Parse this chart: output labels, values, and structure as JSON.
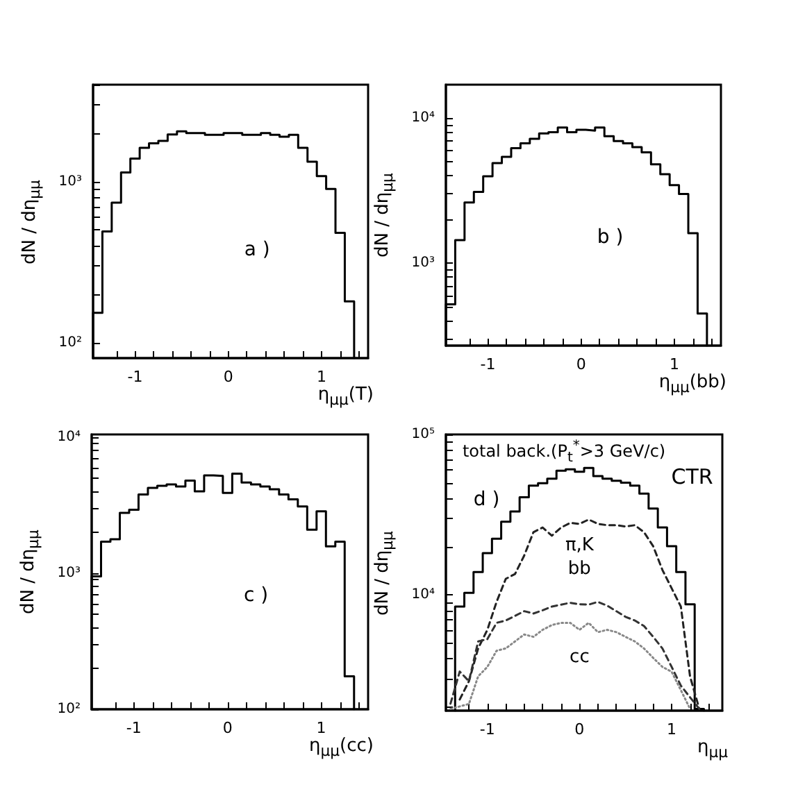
{
  "chart_data": [
    {
      "type": "histogram",
      "xlabel": "η$_{μμ}$(T)",
      "ylabel": "dN / dη$_{μμ}$",
      "annotations": [
        "a )"
      ],
      "color": "#000000",
      "log": true,
      "grid": false,
      "bins": [
        -1.45,
        -1.35,
        -1.25,
        -1.15,
        -1.05,
        -0.95,
        -0.85,
        -0.75,
        -0.65,
        -0.55,
        -0.45,
        -0.35,
        -0.25,
        -0.15,
        -0.05,
        0.05,
        0.15,
        0.25,
        0.35,
        0.45,
        0.55,
        0.65,
        0.75,
        0.85,
        0.95,
        1.05,
        1.15,
        1.25,
        1.35
      ],
      "values": [
        153,
        490,
        740,
        1140,
        1390,
        1620,
        1730,
        1790,
        1960,
        2050,
        2000,
        2000,
        1950,
        1950,
        2000,
        2000,
        1950,
        1950,
        2000,
        1950,
        1900,
        1950,
        1620,
        1330,
        1080,
        900,
        480,
        180
      ],
      "xlim": [
        -1.45,
        1.5
      ],
      "ylim": [
        80,
        4000
      ],
      "xticks": [
        {
          "value": -1.2,
          "label": null
        },
        {
          "value": -1,
          "label": "-1"
        },
        {
          "value": -0.8,
          "label": null
        },
        {
          "value": -0.6,
          "label": null
        },
        {
          "value": -0.4,
          "label": null
        },
        {
          "value": -0.2,
          "label": null
        },
        {
          "value": 0,
          "label": "0"
        },
        {
          "value": 0.2,
          "label": null
        },
        {
          "value": 0.4,
          "label": null
        },
        {
          "value": 0.6,
          "label": null
        },
        {
          "value": 0.8,
          "label": null
        },
        {
          "value": 1,
          "label": "1"
        },
        {
          "value": 1.2,
          "label": null
        },
        {
          "value": 1.4,
          "label": null
        }
      ],
      "yticks": [
        {
          "value": 100,
          "label": "10²"
        },
        {
          "value": 200,
          "label": null
        },
        {
          "value": 300,
          "label": null
        },
        {
          "value": 400,
          "label": null
        },
        {
          "value": 500,
          "label": null
        },
        {
          "value": 600,
          "label": null
        },
        {
          "value": 700,
          "label": null
        },
        {
          "value": 800,
          "label": null
        },
        {
          "value": 900,
          "label": null
        },
        {
          "value": 1000,
          "label": "10³"
        },
        {
          "value": 2000,
          "label": null
        },
        {
          "value": 3000,
          "label": null
        },
        {
          "value": 4000,
          "label": null
        }
      ]
    },
    {
      "type": "histogram",
      "xlabel": "η$_{μμ}$(bb)",
      "ylabel": "dN / dη$_{μμ}$",
      "annotations": [
        "b )"
      ],
      "color": "#000000",
      "log": true,
      "grid": false,
      "bins": [
        -1.45,
        -1.35,
        -1.25,
        -1.15,
        -1.05,
        -0.95,
        -0.85,
        -0.75,
        -0.65,
        -0.55,
        -0.45,
        -0.35,
        -0.25,
        -0.15,
        -0.05,
        0.05,
        0.15,
        0.25,
        0.35,
        0.45,
        0.55,
        0.65,
        0.75,
        0.85,
        0.95,
        1.05,
        1.15,
        1.25,
        1.35
      ],
      "values": [
        520,
        1440,
        2620,
        3100,
        3970,
        4900,
        5400,
        6200,
        6700,
        7200,
        7850,
        8000,
        8600,
        8000,
        8300,
        8200,
        8600,
        7500,
        6950,
        6700,
        6300,
        5800,
        4800,
        4100,
        3450,
        3000,
        1610,
        450
      ],
      "xlim": [
        -1.45,
        1.5
      ],
      "ylim": [
        270,
        17000
      ],
      "xticks": [
        {
          "value": -1.2,
          "label": null
        },
        {
          "value": -1,
          "label": "-1"
        },
        {
          "value": -0.8,
          "label": null
        },
        {
          "value": -0.6,
          "label": null
        },
        {
          "value": -0.4,
          "label": null
        },
        {
          "value": -0.2,
          "label": null
        },
        {
          "value": 0,
          "label": "0"
        },
        {
          "value": 0.2,
          "label": null
        },
        {
          "value": 0.4,
          "label": null
        },
        {
          "value": 0.6,
          "label": null
        },
        {
          "value": 0.8,
          "label": null
        },
        {
          "value": 1,
          "label": "1"
        },
        {
          "value": 1.2,
          "label": null
        },
        {
          "value": 1.4,
          "label": null
        }
      ],
      "yticks": [
        {
          "value": 300,
          "label": null
        },
        {
          "value": 400,
          "label": null
        },
        {
          "value": 500,
          "label": null
        },
        {
          "value": 600,
          "label": null
        },
        {
          "value": 700,
          "label": null
        },
        {
          "value": 800,
          "label": null
        },
        {
          "value": 900,
          "label": null
        },
        {
          "value": 1000,
          "label": "10³"
        },
        {
          "value": 2000,
          "label": null
        },
        {
          "value": 3000,
          "label": null
        },
        {
          "value": 4000,
          "label": null
        },
        {
          "value": 5000,
          "label": null
        },
        {
          "value": 6000,
          "label": null
        },
        {
          "value": 7000,
          "label": null
        },
        {
          "value": 8000,
          "label": null
        },
        {
          "value": 9000,
          "label": null
        },
        {
          "value": 10000,
          "label": "10⁴"
        }
      ]
    },
    {
      "type": "histogram",
      "xlabel": "η$_{μμ}$(cc)",
      "ylabel": "dN / dη$_{μμ}$",
      "annotations": [
        "c )"
      ],
      "color": "#000000",
      "log": true,
      "grid": false,
      "bins": [
        -1.45,
        -1.35,
        -1.25,
        -1.15,
        -1.05,
        -0.95,
        -0.85,
        -0.75,
        -0.65,
        -0.55,
        -0.45,
        -0.35,
        -0.25,
        -0.15,
        -0.05,
        0.05,
        0.15,
        0.25,
        0.35,
        0.45,
        0.55,
        0.65,
        0.75,
        0.85,
        0.95,
        1.05,
        1.15,
        1.25,
        1.35
      ],
      "values": [
        950,
        1710,
        1780,
        2780,
        2930,
        3800,
        4250,
        4400,
        4500,
        4350,
        4800,
        4000,
        5250,
        5200,
        3900,
        5400,
        4650,
        4500,
        4350,
        4150,
        3800,
        3500,
        3100,
        2090,
        2860,
        1580,
        1710,
        175
      ],
      "xlim": [
        -1.45,
        1.5
      ],
      "ylim": [
        100,
        10500
      ],
      "xticks": [
        {
          "value": -1.2,
          "label": null
        },
        {
          "value": -1,
          "label": "-1"
        },
        {
          "value": -0.8,
          "label": null
        },
        {
          "value": -0.6,
          "label": null
        },
        {
          "value": -0.4,
          "label": null
        },
        {
          "value": -0.2,
          "label": null
        },
        {
          "value": 0,
          "label": "0"
        },
        {
          "value": 0.2,
          "label": null
        },
        {
          "value": 0.4,
          "label": null
        },
        {
          "value": 0.6,
          "label": null
        },
        {
          "value": 0.8,
          "label": null
        },
        {
          "value": 1,
          "label": "1"
        },
        {
          "value": 1.2,
          "label": null
        },
        {
          "value": 1.4,
          "label": null
        }
      ],
      "yticks": [
        {
          "value": 100,
          "label": "10²"
        },
        {
          "value": 200,
          "label": null
        },
        {
          "value": 300,
          "label": null
        },
        {
          "value": 400,
          "label": null
        },
        {
          "value": 500,
          "label": null
        },
        {
          "value": 600,
          "label": null
        },
        {
          "value": 700,
          "label": null
        },
        {
          "value": 800,
          "label": null
        },
        {
          "value": 900,
          "label": null
        },
        {
          "value": 1000,
          "label": "10³"
        },
        {
          "value": 2000,
          "label": null
        },
        {
          "value": 3000,
          "label": null
        },
        {
          "value": 4000,
          "label": null
        },
        {
          "value": 5000,
          "label": null
        },
        {
          "value": 6000,
          "label": null
        },
        {
          "value": 7000,
          "label": null
        },
        {
          "value": 8000,
          "label": null
        },
        {
          "value": 9000,
          "label": null
        },
        {
          "value": 10000,
          "label": "10⁴"
        }
      ]
    },
    {
      "type": "histogram",
      "xlabel": "η$_{μμ}$",
      "ylabel": "dN / dη$_{μμ}$",
      "annotations": [
        "total back.(P$_{t}$$^{*}$>3 GeV/c)",
        "d )"
      ],
      "log": true,
      "grid": false,
      "bins": [
        -1.35,
        -1.25,
        -1.15,
        -1.05,
        -0.95,
        -0.85,
        -0.75,
        -0.65,
        -0.55,
        -0.45,
        -0.35,
        -0.25,
        -0.15,
        -0.05,
        0.05,
        0.15,
        0.25,
        0.35,
        0.45,
        0.55,
        0.65,
        0.75,
        0.85,
        0.95,
        1.05,
        1.15,
        1.25,
        1.35
      ],
      "series": [
        {
          "name": "CTR",
          "color": "#000000",
          "values": [
            8460,
            10300,
            13900,
            18200,
            22400,
            28600,
            33100,
            40600,
            48000,
            49700,
            53000,
            59400,
            60600,
            58600,
            61800,
            55000,
            53000,
            51500,
            50000,
            48000,
            42800,
            34500,
            26300,
            20100,
            13900,
            8750,
            1950
          ]
        },
        {
          "name": "π,K",
          "type": "line",
          "line_style": "dashed",
          "color": "#222222",
          "x": [
            -1.3,
            -1.2,
            -1.1,
            -1.0,
            -0.9,
            -0.8,
            -0.7,
            -0.6,
            -0.5,
            -0.4,
            -0.3,
            -0.2,
            -0.1,
            0.0,
            0.1,
            0.2,
            0.3,
            0.4,
            0.5,
            0.6,
            0.7,
            0.8,
            0.9,
            1.0,
            1.1,
            1.2,
            1.3
          ],
          "values": [
            2230,
            2900,
            4640,
            6060,
            9050,
            12600,
            13500,
            17600,
            24600,
            26300,
            23400,
            26300,
            28100,
            27700,
            29500,
            27700,
            27200,
            27200,
            26700,
            27200,
            24600,
            20100,
            14300,
            11000,
            8460,
            3100,
            1950
          ]
        },
        {
          "name": "bb",
          "type": "line",
          "line_style": "dashed",
          "color": "#333333",
          "x": [
            -1.4,
            -1.3,
            -1.2,
            -1.1,
            -1.0,
            -0.9,
            -0.8,
            -0.7,
            -0.6,
            -0.5,
            -0.4,
            -0.3,
            -0.2,
            -0.1,
            0.0,
            0.1,
            0.2,
            0.3,
            0.4,
            0.5,
            0.6,
            0.7,
            0.8,
            0.9,
            1.0,
            1.1,
            1.2,
            1.3
          ],
          "values": [
            2100,
            3330,
            2900,
            5130,
            5300,
            6700,
            6930,
            7400,
            7920,
            7660,
            8020,
            8460,
            8700,
            8930,
            8750,
            8700,
            9050,
            8580,
            7920,
            7300,
            6930,
            6400,
            5480,
            4640,
            3560,
            2720,
            2300,
            1950
          ]
        },
        {
          "name": "cc",
          "type": "line",
          "line_style": "dotted",
          "color": "#888888",
          "x": [
            -1.4,
            -1.2,
            -1.1,
            -1.0,
            -0.9,
            -0.8,
            -0.7,
            -0.6,
            -0.5,
            -0.4,
            -0.3,
            -0.2,
            -0.1,
            0.0,
            0.1,
            0.2,
            0.3,
            0.4,
            0.5,
            0.6,
            0.7,
            0.8,
            0.9,
            1.0,
            1.1,
            1.2
          ],
          "values": [
            1950,
            2090,
            3110,
            3560,
            4490,
            4640,
            5130,
            5670,
            5480,
            6060,
            6490,
            6700,
            6700,
            6060,
            6700,
            5860,
            6060,
            5860,
            5480,
            5130,
            4640,
            4050,
            3560,
            3320,
            2550,
            1950
          ]
        }
      ],
      "xlim": [
        -1.45,
        1.55
      ],
      "ylim": [
        1900,
        100000
      ],
      "xticks": [
        {
          "value": -1.2,
          "label": null
        },
        {
          "value": -1,
          "label": "-1"
        },
        {
          "value": -0.8,
          "label": null
        },
        {
          "value": -0.6,
          "label": null
        },
        {
          "value": -0.4,
          "label": null
        },
        {
          "value": -0.2,
          "label": null
        },
        {
          "value": 0,
          "label": "0"
        },
        {
          "value": 0.2,
          "label": null
        },
        {
          "value": 0.4,
          "label": null
        },
        {
          "value": 0.6,
          "label": null
        },
        {
          "value": 0.8,
          "label": null
        },
        {
          "value": 1,
          "label": "1"
        },
        {
          "value": 1.2,
          "label": null
        },
        {
          "value": 1.4,
          "label": null
        }
      ],
      "yticks": [
        {
          "value": 2000,
          "label": null
        },
        {
          "value": 3000,
          "label": null
        },
        {
          "value": 4000,
          "label": null
        },
        {
          "value": 5000,
          "label": null
        },
        {
          "value": 6000,
          "label": null
        },
        {
          "value": 7000,
          "label": null
        },
        {
          "value": 8000,
          "label": null
        },
        {
          "value": 9000,
          "label": null
        },
        {
          "value": 10000,
          "label": "10⁴"
        },
        {
          "value": 20000,
          "label": null
        },
        {
          "value": 30000,
          "label": null
        },
        {
          "value": 40000,
          "label": null
        },
        {
          "value": 50000,
          "label": null
        },
        {
          "value": 60000,
          "label": null
        },
        {
          "value": 70000,
          "label": null
        },
        {
          "value": 80000,
          "label": null
        },
        {
          "value": 90000,
          "label": null
        },
        {
          "value": 100000,
          "label": "10⁵"
        }
      ]
    }
  ]
}
